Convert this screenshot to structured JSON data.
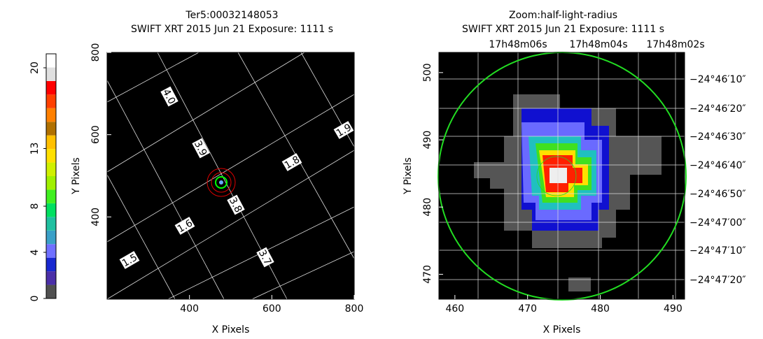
{
  "chart_data": [
    {
      "type": "image",
      "title": "Ter5:00032148053",
      "subtitle": "SWIFT XRT   2015 Jun 21    Exposure: 1111 s",
      "xlabel": "X Pixels",
      "ylabel": "Y Pixels",
      "xlim": [
        200,
        800
      ],
      "ylim": [
        200,
        800
      ],
      "xticks": [
        400,
        600,
        800
      ],
      "yticks": [
        400,
        600,
        800
      ],
      "grid_labels": [
        "4.0",
        "3.9",
        "3.8",
        "3.7",
        "1.9",
        "1.8",
        "1.6",
        "1.5"
      ],
      "colorbar": {
        "lim": [
          0,
          20
        ],
        "ticks": [
          0,
          4,
          8,
          13,
          20
        ],
        "colors": [
          "#505050",
          "#4b2fa8",
          "#1828d0",
          "#7070ff",
          "#3aa0c8",
          "#20c0a0",
          "#00e060",
          "#40f020",
          "#a0f000",
          "#d0f000",
          "#ffe000",
          "#ffc000",
          "#b07000",
          "#ff8000",
          "#ff4000",
          "#ff0000",
          "#e0e0e0",
          "#ffffff"
        ]
      }
    },
    {
      "type": "image",
      "title": "Zoom:half-light-radius",
      "subtitle": "SWIFT XRT   2015 Jun 21    Exposure: 1111 s",
      "xlabel": "X Pixels",
      "ylabel": "Y Pixels",
      "xlim": [
        457.8,
        491.6
      ],
      "ylim": [
        466.3,
        503.0
      ],
      "xticks": [
        460,
        470,
        480,
        490
      ],
      "yticks": [
        470,
        480,
        490,
        500
      ],
      "ra_ticks": [
        "17h48m06s",
        "17h48m04s",
        "17h48m02s"
      ],
      "dec_ticks": [
        "−24°46′10″",
        "−24°46′20″",
        "−24°46′30″",
        "−24°46′40″",
        "−24°46′50″",
        "−24°47′00″",
        "−24°47′10″",
        "−24°47′20″"
      ]
    }
  ]
}
